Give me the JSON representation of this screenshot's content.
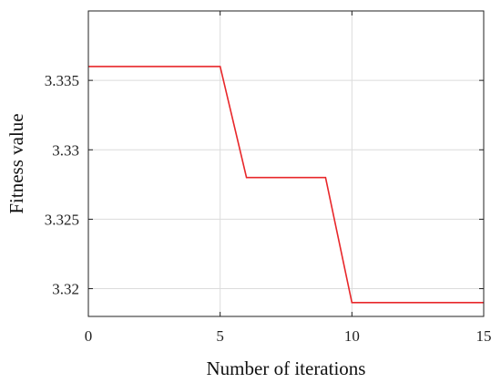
{
  "chart_data": {
    "type": "line",
    "xlabel": "Number of iterations",
    "ylabel": "Fitness value",
    "xlim": [
      0,
      15
    ],
    "ylim": [
      3.318,
      3.34
    ],
    "xticks": [
      0,
      5,
      10,
      15
    ],
    "xtick_labels": [
      "0",
      "5",
      "10",
      "15"
    ],
    "yticks": [
      3.32,
      3.325,
      3.33,
      3.335
    ],
    "ytick_labels": [
      "3.32",
      "3.325",
      "3.33",
      "3.335"
    ],
    "grid": true,
    "series_color": "#e8272a",
    "series": [
      {
        "x": [
          0,
          5,
          6,
          9,
          10,
          15
        ],
        "values": [
          3.336,
          3.336,
          3.328,
          3.328,
          3.319,
          3.319
        ]
      }
    ]
  }
}
